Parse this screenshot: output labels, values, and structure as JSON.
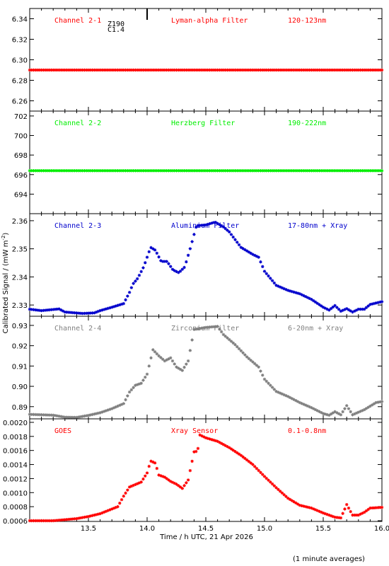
{
  "chart_data": {
    "type": "scatter",
    "xlabel": "Time / h UTC, 21 Apr 2026",
    "ylabel": "Calibrated Signal / (mW m",
    "ylabel_sup": "-2",
    "ylabel_close": ")",
    "footnote": "(1 minute averages)",
    "xlim": [
      13.0,
      16.0
    ],
    "xticks": [
      "13.5",
      "14.0",
      "14.5",
      "15.0",
      "15.5",
      "16.0"
    ],
    "marker": "asterisk",
    "grid": false,
    "panels": [
      {
        "channel": "Channel 2-1",
        "filter": "Lyman-alpha Filter",
        "band": "120-123nm",
        "color": "#ff0000",
        "ylim": [
          6.25,
          6.35
        ],
        "yticks": [
          "6.26",
          "6.28",
          "6.30",
          "6.32",
          "6.34"
        ],
        "extra_labels": [
          "Z190",
          "C1.4"
        ],
        "points": [
          [
            13.0,
            6.29
          ],
          [
            13.5,
            6.29
          ],
          [
            14.0,
            6.29
          ],
          [
            14.5,
            6.29
          ],
          [
            15.0,
            6.29
          ],
          [
            15.5,
            6.29
          ],
          [
            16.0,
            6.29
          ]
        ]
      },
      {
        "channel": "Channel 2-2",
        "filter": "Herzberg Filter",
        "band": "190-222nm",
        "color": "#00ee00",
        "ylim": [
          692.0,
          702.5
        ],
        "yticks": [
          "694",
          "696",
          "698",
          "700",
          "702"
        ],
        "extra_labels": [],
        "points": [
          [
            13.0,
            696.4
          ],
          [
            13.5,
            696.4
          ],
          [
            14.0,
            696.4
          ],
          [
            14.5,
            696.4
          ],
          [
            15.0,
            696.4
          ],
          [
            15.5,
            696.4
          ],
          [
            16.0,
            696.4
          ]
        ]
      },
      {
        "channel": "Channel 2-3",
        "filter": "Aluminium Filter",
        "band": "17-80nm + Xray",
        "color": "#0000cc",
        "ylim": [
          2.326,
          2.3625
        ],
        "yticks": [
          "2.33",
          "2.34",
          "2.35",
          "2.36"
        ],
        "extra_labels": [],
        "points": [
          [
            13.0,
            2.3285
          ],
          [
            13.1,
            2.328
          ],
          [
            13.25,
            2.3286
          ],
          [
            13.3,
            2.3275
          ],
          [
            13.45,
            2.327
          ],
          [
            13.55,
            2.3272
          ],
          [
            13.6,
            2.328
          ],
          [
            13.7,
            2.3292
          ],
          [
            13.8,
            2.3305
          ],
          [
            13.85,
            2.3345
          ],
          [
            13.88,
            2.3375
          ],
          [
            13.92,
            2.3395
          ],
          [
            13.97,
            2.3435
          ],
          [
            14.03,
            2.3505
          ],
          [
            14.07,
            2.3495
          ],
          [
            14.12,
            2.3455
          ],
          [
            14.17,
            2.3455
          ],
          [
            14.22,
            2.3425
          ],
          [
            14.27,
            2.3415
          ],
          [
            14.32,
            2.3435
          ],
          [
            14.37,
            2.3505
          ],
          [
            14.42,
            2.3582
          ],
          [
            14.5,
            2.3585
          ],
          [
            14.58,
            2.3595
          ],
          [
            14.65,
            2.3578
          ],
          [
            14.7,
            2.356
          ],
          [
            14.8,
            2.3505
          ],
          [
            14.9,
            2.348
          ],
          [
            14.95,
            2.347
          ],
          [
            15.0,
            2.342
          ],
          [
            15.1,
            2.337
          ],
          [
            15.2,
            2.3352
          ],
          [
            15.3,
            2.334
          ],
          [
            15.4,
            2.332
          ],
          [
            15.5,
            2.3292
          ],
          [
            15.55,
            2.3282
          ],
          [
            15.6,
            2.3298
          ],
          [
            15.65,
            2.3278
          ],
          [
            15.7,
            2.3287
          ],
          [
            15.75,
            2.3275
          ],
          [
            15.8,
            2.3285
          ],
          [
            15.85,
            2.3285
          ],
          [
            15.9,
            2.3302
          ],
          [
            16.0,
            2.3312
          ]
        ]
      },
      {
        "channel": "Channel 2-4",
        "filter": "Zirconium Filter",
        "band": "6-20nm + Xray",
        "color": "#808080",
        "ylim": [
          0.884,
          0.9345
        ],
        "yticks": [
          "0.89",
          "0.90",
          "0.91",
          "0.92",
          "0.93"
        ],
        "extra_labels": [],
        "points": [
          [
            13.0,
            0.8862
          ],
          [
            13.1,
            0.886
          ],
          [
            13.2,
            0.8858
          ],
          [
            13.3,
            0.8848
          ],
          [
            13.4,
            0.8847
          ],
          [
            13.5,
            0.8857
          ],
          [
            13.6,
            0.887
          ],
          [
            13.7,
            0.889
          ],
          [
            13.8,
            0.8915
          ],
          [
            13.85,
            0.8972
          ],
          [
            13.9,
            0.9005
          ],
          [
            13.95,
            0.9015
          ],
          [
            14.0,
            0.906
          ],
          [
            14.05,
            0.918
          ],
          [
            14.1,
            0.915
          ],
          [
            14.15,
            0.9125
          ],
          [
            14.2,
            0.914
          ],
          [
            14.25,
            0.9095
          ],
          [
            14.3,
            0.9078
          ],
          [
            14.35,
            0.9125
          ],
          [
            14.4,
            0.928
          ],
          [
            14.5,
            0.929
          ],
          [
            14.6,
            0.9295
          ],
          [
            14.65,
            0.9255
          ],
          [
            14.75,
            0.9205
          ],
          [
            14.85,
            0.9145
          ],
          [
            14.95,
            0.9095
          ],
          [
            15.0,
            0.9035
          ],
          [
            15.1,
            0.8975
          ],
          [
            15.2,
            0.895
          ],
          [
            15.3,
            0.892
          ],
          [
            15.4,
            0.8895
          ],
          [
            15.5,
            0.8866
          ],
          [
            15.55,
            0.8858
          ],
          [
            15.6,
            0.8875
          ],
          [
            15.65,
            0.886
          ],
          [
            15.7,
            0.8905
          ],
          [
            15.75,
            0.886
          ],
          [
            15.85,
            0.8885
          ],
          [
            15.95,
            0.892
          ],
          [
            16.0,
            0.8925
          ]
        ]
      },
      {
        "channel": "GOES",
        "filter": "Xray Sensor",
        "band": "0.1-0.8nm",
        "color": "#ff0000",
        "ylim": [
          0.00059,
          0.00205
        ],
        "yticks": [
          "0.0006",
          "0.0008",
          "0.0010",
          "0.0012",
          "0.0014",
          "0.0016",
          "0.0018",
          "0.0020"
        ],
        "extra_labels": [],
        "points": [
          [
            13.0,
            0.0006
          ],
          [
            13.2,
            0.0006
          ],
          [
            13.4,
            0.00063
          ],
          [
            13.5,
            0.00066
          ],
          [
            13.6,
            0.0007
          ],
          [
            13.75,
            0.0008
          ],
          [
            13.8,
            0.00095
          ],
          [
            13.85,
            0.00108
          ],
          [
            13.95,
            0.00115
          ],
          [
            14.0,
            0.00128
          ],
          [
            14.03,
            0.00145
          ],
          [
            14.07,
            0.00142
          ],
          [
            14.1,
            0.00125
          ],
          [
            14.15,
            0.00122
          ],
          [
            14.2,
            0.00116
          ],
          [
            14.25,
            0.00112
          ],
          [
            14.3,
            0.00106
          ],
          [
            14.35,
            0.00118
          ],
          [
            14.4,
            0.00158
          ],
          [
            14.43,
            0.00159
          ],
          [
            14.45,
            0.00182
          ],
          [
            14.5,
            0.00178
          ],
          [
            14.6,
            0.00173
          ],
          [
            14.7,
            0.00164
          ],
          [
            14.8,
            0.00153
          ],
          [
            14.9,
            0.0014
          ],
          [
            15.0,
            0.00123
          ],
          [
            15.1,
            0.00107
          ],
          [
            15.2,
            0.00092
          ],
          [
            15.3,
            0.00082
          ],
          [
            15.4,
            0.00078
          ],
          [
            15.5,
            0.00071
          ],
          [
            15.6,
            0.00065
          ],
          [
            15.65,
            0.00064
          ],
          [
            15.7,
            0.00083
          ],
          [
            15.75,
            0.00068
          ],
          [
            15.8,
            0.00068
          ],
          [
            15.85,
            0.00072
          ],
          [
            15.9,
            0.00078
          ],
          [
            16.0,
            0.00079
          ]
        ]
      }
    ]
  }
}
